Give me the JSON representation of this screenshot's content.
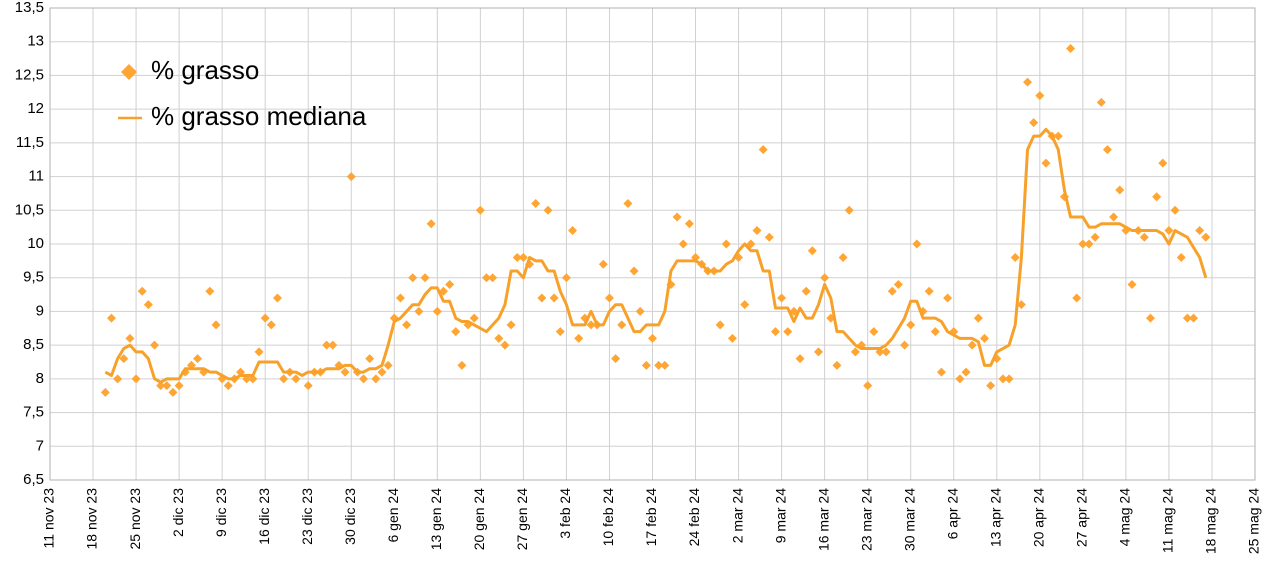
{
  "chart_data": {
    "type": "line",
    "x": [
      "2023-11-20",
      "2023-11-21",
      "2023-11-22",
      "2023-11-23",
      "2023-11-24",
      "2023-11-25",
      "2023-11-26",
      "2023-11-27",
      "2023-11-28",
      "2023-11-29",
      "2023-11-30",
      "2023-12-01",
      "2023-12-02",
      "2023-12-03",
      "2023-12-04",
      "2023-12-05",
      "2023-12-06",
      "2023-12-07",
      "2023-12-08",
      "2023-12-09",
      "2023-12-10",
      "2023-12-11",
      "2023-12-12",
      "2023-12-13",
      "2023-12-14",
      "2023-12-15",
      "2023-12-16",
      "2023-12-17",
      "2023-12-18",
      "2023-12-19",
      "2023-12-20",
      "2023-12-21",
      "2023-12-22",
      "2023-12-23",
      "2023-12-24",
      "2023-12-25",
      "2023-12-26",
      "2023-12-27",
      "2023-12-28",
      "2023-12-29",
      "2023-12-30",
      "2023-12-31",
      "2024-01-01",
      "2024-01-02",
      "2024-01-03",
      "2024-01-04",
      "2024-01-05",
      "2024-01-06",
      "2024-01-07",
      "2024-01-08",
      "2024-01-09",
      "2024-01-10",
      "2024-01-11",
      "2024-01-12",
      "2024-01-13",
      "2024-01-14",
      "2024-01-15",
      "2024-01-16",
      "2024-01-17",
      "2024-01-18",
      "2024-01-19",
      "2024-01-20",
      "2024-01-21",
      "2024-01-22",
      "2024-01-23",
      "2024-01-24",
      "2024-01-25",
      "2024-01-26",
      "2024-01-27",
      "2024-01-28",
      "2024-01-29",
      "2024-01-30",
      "2024-01-31",
      "2024-02-01",
      "2024-02-02",
      "2024-02-03",
      "2024-02-04",
      "2024-02-05",
      "2024-02-06",
      "2024-02-07",
      "2024-02-08",
      "2024-02-09",
      "2024-02-10",
      "2024-02-11",
      "2024-02-12",
      "2024-02-13",
      "2024-02-14",
      "2024-02-15",
      "2024-02-16",
      "2024-02-17",
      "2024-02-18",
      "2024-02-19",
      "2024-02-20",
      "2024-02-21",
      "2024-02-22",
      "2024-02-23",
      "2024-02-24",
      "2024-02-25",
      "2024-02-26",
      "2024-02-27",
      "2024-02-28",
      "2024-02-29",
      "2024-03-01",
      "2024-03-02",
      "2024-03-03",
      "2024-03-04",
      "2024-03-05",
      "2024-03-06",
      "2024-03-07",
      "2024-03-08",
      "2024-03-09",
      "2024-03-10",
      "2024-03-11",
      "2024-03-12",
      "2024-03-13",
      "2024-03-14",
      "2024-03-15",
      "2024-03-16",
      "2024-03-17",
      "2024-03-18",
      "2024-03-19",
      "2024-03-20",
      "2024-03-21",
      "2024-03-22",
      "2024-03-23",
      "2024-03-24",
      "2024-03-25",
      "2024-03-26",
      "2024-03-27",
      "2024-03-28",
      "2024-03-29",
      "2024-03-30",
      "2024-03-31",
      "2024-04-01",
      "2024-04-02",
      "2024-04-03",
      "2024-04-04",
      "2024-04-05",
      "2024-04-06",
      "2024-04-07",
      "2024-04-08",
      "2024-04-09",
      "2024-04-10",
      "2024-04-11",
      "2024-04-12",
      "2024-04-13",
      "2024-04-14",
      "2024-04-15",
      "2024-04-16",
      "2024-04-17",
      "2024-04-18",
      "2024-04-19",
      "2024-04-20",
      "2024-04-21",
      "2024-04-22",
      "2024-04-23",
      "2024-04-24",
      "2024-04-25",
      "2024-04-26",
      "2024-04-27",
      "2024-04-28",
      "2024-04-29",
      "2024-04-30",
      "2024-05-01",
      "2024-05-02",
      "2024-05-03",
      "2024-05-04",
      "2024-05-05",
      "2024-05-06",
      "2024-05-07",
      "2024-05-08",
      "2024-05-09",
      "2024-05-10",
      "2024-05-11",
      "2024-05-12",
      "2024-05-13",
      "2024-05-14",
      "2024-05-15",
      "2024-05-16",
      "2024-05-17"
    ],
    "series": [
      {
        "name": "% grasso",
        "type": "scatter",
        "color": "#ffa534",
        "values": [
          7.8,
          8.9,
          8.0,
          8.3,
          8.6,
          8.0,
          9.3,
          9.1,
          8.5,
          7.9,
          7.9,
          7.8,
          7.9,
          8.1,
          8.2,
          8.3,
          8.1,
          9.3,
          8.8,
          8.0,
          7.9,
          8.0,
          8.1,
          8.0,
          8.0,
          8.4,
          8.9,
          8.8,
          9.2,
          8.0,
          8.1,
          8.0,
          null,
          7.9,
          8.1,
          8.1,
          8.5,
          8.5,
          8.2,
          8.1,
          11.0,
          8.1,
          8.0,
          8.3,
          8.0,
          8.1,
          8.2,
          8.9,
          9.2,
          8.8,
          9.5,
          9.0,
          9.5,
          10.3,
          9.0,
          9.3,
          9.4,
          8.7,
          8.2,
          8.8,
          8.9,
          10.5,
          9.5,
          9.5,
          8.6,
          8.5,
          8.8,
          9.8,
          9.8,
          9.7,
          10.6,
          9.2,
          10.5,
          9.2,
          8.7,
          9.5,
          10.2,
          8.6,
          8.9,
          8.8,
          8.8,
          9.7,
          9.2,
          8.3,
          8.8,
          10.6,
          9.6,
          9.0,
          8.2,
          8.6,
          8.2,
          8.2,
          9.4,
          10.4,
          10.0,
          10.3,
          9.8,
          9.7,
          9.6,
          9.6,
          8.8,
          10.0,
          8.6,
          9.8,
          9.1,
          10.0,
          10.2,
          11.4,
          10.1,
          8.7,
          9.2,
          8.7,
          9.0,
          8.3,
          9.3,
          9.9,
          8.4,
          9.5,
          8.9,
          8.2,
          9.8,
          10.5,
          8.4,
          8.5,
          7.9,
          8.7,
          8.4,
          8.4,
          9.3,
          9.4,
          8.5,
          8.8,
          10.0,
          9.0,
          9.3,
          8.7,
          8.1,
          9.2,
          8.7,
          8.0,
          8.1,
          8.5,
          8.9,
          8.6,
          7.9,
          8.3,
          8.0,
          8.0,
          9.8,
          9.1,
          12.4,
          11.8,
          12.2,
          11.2,
          11.6,
          11.6,
          10.7,
          12.9,
          9.2,
          10.0,
          10.0,
          10.1,
          12.1,
          11.4,
          10.4,
          10.8,
          10.2,
          9.4,
          10.2,
          10.1,
          8.9,
          10.7,
          11.2,
          10.2,
          10.5,
          9.8,
          8.9,
          8.9,
          10.2,
          10.1
        ]
      },
      {
        "name": "% grasso mediana",
        "type": "line",
        "color": "#f7a12a",
        "values": [
          8.1,
          8.05,
          8.3,
          8.45,
          8.5,
          8.4,
          8.4,
          8.3,
          8.0,
          7.95,
          8.0,
          8.0,
          8.0,
          8.15,
          8.15,
          8.15,
          8.15,
          8.1,
          8.1,
          8.05,
          8.0,
          8.0,
          8.05,
          8.05,
          8.05,
          8.25,
          8.25,
          8.25,
          8.25,
          8.1,
          8.1,
          8.1,
          8.05,
          8.1,
          8.1,
          8.1,
          8.15,
          8.15,
          8.15,
          8.2,
          8.2,
          8.1,
          8.1,
          8.15,
          8.15,
          8.2,
          8.5,
          8.85,
          8.9,
          9.0,
          9.1,
          9.1,
          9.25,
          9.35,
          9.35,
          9.15,
          9.15,
          8.9,
          8.85,
          8.85,
          8.8,
          8.75,
          8.7,
          8.8,
          8.9,
          9.1,
          9.6,
          9.6,
          9.5,
          9.8,
          9.75,
          9.75,
          9.6,
          9.6,
          9.3,
          9.1,
          8.8,
          8.8,
          8.8,
          9.0,
          8.8,
          8.8,
          9.0,
          9.1,
          9.1,
          8.9,
          8.7,
          8.7,
          8.8,
          8.8,
          8.8,
          9.0,
          9.6,
          9.75,
          9.75,
          9.75,
          9.75,
          9.7,
          9.6,
          9.6,
          9.6,
          9.7,
          9.75,
          9.9,
          10.0,
          9.9,
          9.9,
          9.6,
          9.6,
          9.05,
          9.05,
          9.05,
          8.85,
          9.05,
          8.9,
          8.9,
          9.1,
          9.4,
          9.2,
          8.7,
          8.7,
          8.6,
          8.5,
          8.45,
          8.45,
          8.45,
          8.45,
          8.5,
          8.6,
          8.75,
          8.9,
          9.15,
          9.15,
          8.9,
          8.9,
          8.9,
          8.85,
          8.7,
          8.65,
          8.6,
          8.6,
          8.6,
          8.55,
          8.2,
          8.2,
          8.4,
          8.45,
          8.5,
          8.8,
          9.8,
          11.4,
          11.6,
          11.6,
          11.7,
          11.6,
          11.4,
          10.8,
          10.4,
          10.4,
          10.4,
          10.25,
          10.25,
          10.3,
          10.3,
          10.3,
          10.3,
          10.25,
          10.2,
          10.2,
          10.2,
          10.2,
          10.2,
          10.15,
          10.0,
          10.2,
          10.15,
          10.1,
          9.95,
          9.8,
          9.5
        ]
      }
    ],
    "xlim": [
      "2023-11-11",
      "2024-05-25"
    ],
    "xticks": [
      {
        "value": "2023-11-11",
        "label": "11 nov 23"
      },
      {
        "value": "2023-11-18",
        "label": "18 nov 23"
      },
      {
        "value": "2023-11-25",
        "label": "25 nov 23"
      },
      {
        "value": "2023-12-02",
        "label": "2 dic 23"
      },
      {
        "value": "2023-12-09",
        "label": "9 dic 23"
      },
      {
        "value": "2023-12-16",
        "label": "16 dic 23"
      },
      {
        "value": "2023-12-23",
        "label": "23 dic 23"
      },
      {
        "value": "2023-12-30",
        "label": "30 dic 23"
      },
      {
        "value": "2024-01-06",
        "label": "6 gen 24"
      },
      {
        "value": "2024-01-13",
        "label": "13 gen 24"
      },
      {
        "value": "2024-01-20",
        "label": "20 gen 24"
      },
      {
        "value": "2024-01-27",
        "label": "27 gen 24"
      },
      {
        "value": "2024-02-03",
        "label": "3 feb 24"
      },
      {
        "value": "2024-02-10",
        "label": "10 feb 24"
      },
      {
        "value": "2024-02-17",
        "label": "17 feb 24"
      },
      {
        "value": "2024-02-24",
        "label": "24 feb 24"
      },
      {
        "value": "2024-03-02",
        "label": "2 mar 24"
      },
      {
        "value": "2024-03-09",
        "label": "9 mar 24"
      },
      {
        "value": "2024-03-16",
        "label": "16 mar 24"
      },
      {
        "value": "2024-03-23",
        "label": "23 mar 24"
      },
      {
        "value": "2024-03-30",
        "label": "30 mar 24"
      },
      {
        "value": "2024-04-06",
        "label": "6 apr 24"
      },
      {
        "value": "2024-04-13",
        "label": "13 apr 24"
      },
      {
        "value": "2024-04-20",
        "label": "20 apr 24"
      },
      {
        "value": "2024-04-27",
        "label": "27 apr 24"
      },
      {
        "value": "2024-05-04",
        "label": "4 mag 24"
      },
      {
        "value": "2024-05-11",
        "label": "11 mag 24"
      },
      {
        "value": "2024-05-18",
        "label": "18 mag 24"
      },
      {
        "value": "2024-05-25",
        "label": "25 mag 24"
      }
    ],
    "ylim": [
      6.5,
      13.5
    ],
    "yticks": [
      {
        "value": 6.5,
        "label": "6,5"
      },
      7,
      {
        "value": 7.5,
        "label": "7,5"
      },
      8,
      {
        "value": 8.5,
        "label": "8,5"
      },
      9,
      {
        "value": 9.5,
        "label": "9,5"
      },
      10,
      {
        "value": 10.5,
        "label": "10,5"
      },
      11,
      {
        "value": 11.5,
        "label": "11,5"
      },
      12,
      {
        "value": 12.5,
        "label": "12,5"
      },
      13,
      {
        "value": 13.5,
        "label": "13,5"
      }
    ],
    "grid": true,
    "legend": "upper left"
  }
}
